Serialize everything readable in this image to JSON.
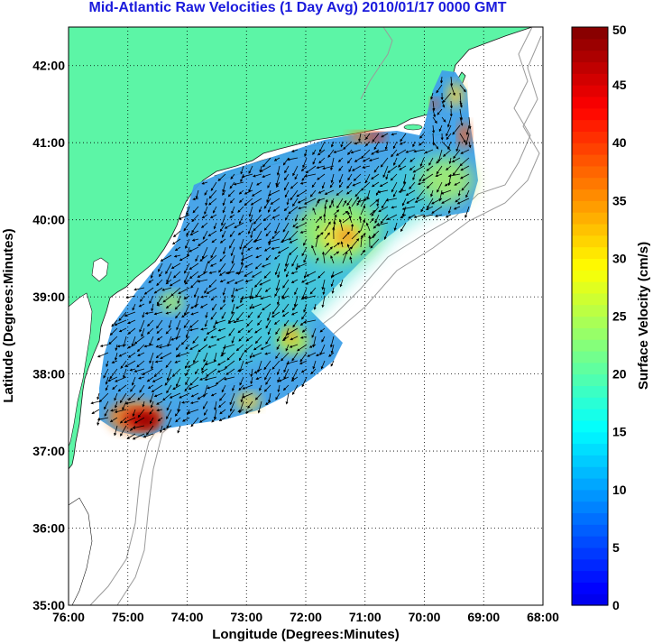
{
  "title": "Mid-Atlantic Raw Velocities (1 Day Avg) 2010/01/17 0000 GMT",
  "map": {
    "xlabel": "Longitude (Degrees:Minutes)",
    "ylabel": "Latitude (Degrees:Minutes)",
    "lon_range": [
      -76,
      -68
    ],
    "lat_range": [
      35,
      42.5
    ],
    "lon_ticks": [
      "76:00",
      "75:00",
      "74:00",
      "73:00",
      "72:00",
      "71:00",
      "70:00",
      "69:00",
      "68:00"
    ],
    "lat_ticks": [
      "35:00",
      "36:00",
      "37:00",
      "38:00",
      "39:00",
      "40:00",
      "41:00",
      "42:00"
    ],
    "grid": "dotted",
    "colors": {
      "land": "#5cf5a6",
      "title": "#1a1adc",
      "bathymetry": "#9a9a9a",
      "vectors": "#000000"
    }
  },
  "colorbar": {
    "label": "Surface Velocity (cm/s)",
    "min": 0,
    "max": 50,
    "ticks": [
      "0",
      "5",
      "10",
      "15",
      "20",
      "25",
      "30",
      "35",
      "40",
      "45",
      "50"
    ],
    "colormap": "jet",
    "bands": 50
  }
}
